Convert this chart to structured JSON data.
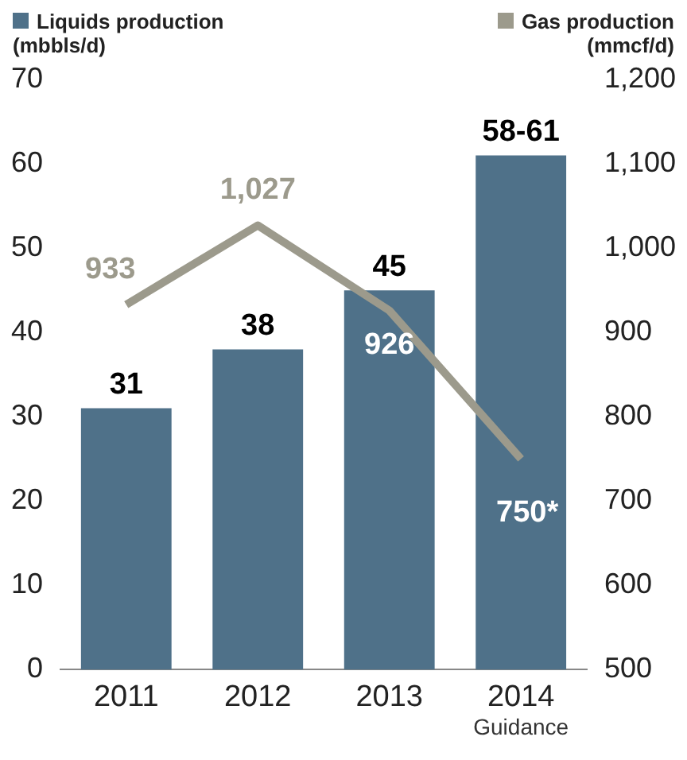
{
  "chart_data": {
    "type": "bar",
    "categories": [
      "2011",
      "2012",
      "2013",
      "2014"
    ],
    "series": [
      {
        "name": "Liquids production",
        "color": "#4f7189",
        "values": [
          31,
          38,
          45,
          61
        ],
        "value_labels": [
          "31",
          "38",
          "45",
          "58-61"
        ]
      },
      {
        "name": "Gas production",
        "type": "line",
        "axis": "y2",
        "color": "#9c9a8c",
        "values": [
          933,
          1027,
          926,
          750
        ],
        "value_labels": [
          "933",
          "1,027",
          "926",
          "750*"
        ]
      }
    ],
    "ylabel": "(mbbls/d)",
    "y2label": "(mmcf/d)",
    "ylim": [
      0,
      70
    ],
    "yticks": [
      0,
      10,
      20,
      30,
      40,
      50,
      60,
      70
    ],
    "y2lim": [
      500,
      1200
    ],
    "y2ticks": [
      500,
      600,
      700,
      800,
      900,
      {
        "value": 1000,
        "label": "1,000"
      },
      {
        "value": 1100,
        "label": "1,100"
      },
      {
        "value": 1200,
        "label": "1,200"
      }
    ],
    "annotations": [
      "Guidance"
    ],
    "legend": "top",
    "grid": false,
    "marker": "none",
    "line_style": "solid"
  }
}
